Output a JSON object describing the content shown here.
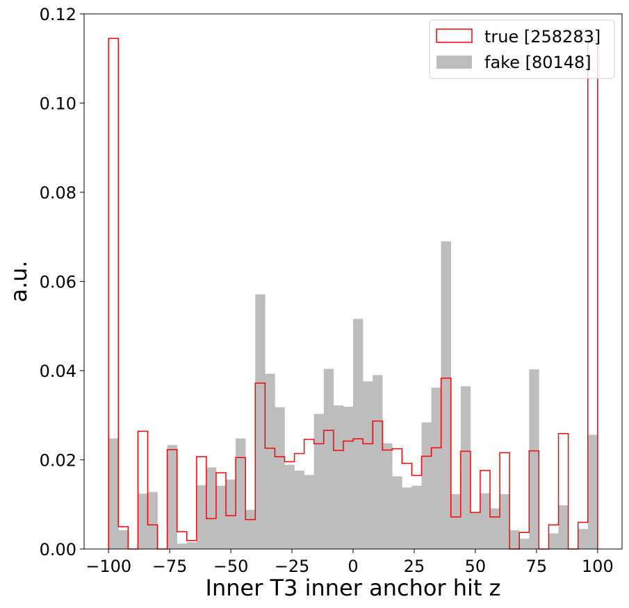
{
  "chart_data": {
    "type": "bar",
    "xlabel": "Inner T3 inner anchor hit z",
    "ylabel": "a.u.",
    "xlim": [
      -110,
      110
    ],
    "ylim": [
      0,
      0.12
    ],
    "xticks": [
      -100,
      -75,
      -50,
      -25,
      0,
      25,
      50,
      75,
      100
    ],
    "xtick_labels": [
      "−100",
      "−75",
      "−50",
      "−25",
      "0",
      "25",
      "50",
      "75",
      "100"
    ],
    "yticks": [
      0.0,
      0.02,
      0.04,
      0.06,
      0.08,
      0.1,
      0.12
    ],
    "ytick_labels": [
      "0.00",
      "0.02",
      "0.04",
      "0.06",
      "0.08",
      "0.10",
      "0.12"
    ],
    "bin_edges": [
      -100,
      -96,
      -92,
      -88,
      -84,
      -80,
      -76,
      -72,
      -68,
      -64,
      -60,
      -56,
      -52,
      -48,
      -44,
      -40,
      -36,
      -32,
      -28,
      -24,
      -20,
      -16,
      -12,
      -8,
      -4,
      0,
      4,
      8,
      12,
      16,
      20,
      24,
      28,
      32,
      36,
      40,
      44,
      48,
      52,
      56,
      60,
      64,
      68,
      72,
      76,
      80,
      84,
      88,
      92,
      96,
      100
    ],
    "legend_position": "top-right",
    "series": [
      {
        "name": "true [258283]",
        "style": "step",
        "color": "#ff0000",
        "values": [
          0.1145,
          0.005,
          0.0,
          0.0264,
          0.0054,
          0.0,
          0.0223,
          0.0039,
          0.0019,
          0.0207,
          0.0068,
          0.0171,
          0.0075,
          0.0205,
          0.0066,
          0.0372,
          0.0226,
          0.0207,
          0.0196,
          0.0214,
          0.0246,
          0.0236,
          0.0266,
          0.0221,
          0.0242,
          0.0247,
          0.0236,
          0.0287,
          0.0222,
          0.0225,
          0.0192,
          0.0165,
          0.0208,
          0.0227,
          0.0383,
          0.0072,
          0.0219,
          0.0082,
          0.0176,
          0.0072,
          0.0216,
          0.0,
          0.0037,
          0.022,
          0.0,
          0.0054,
          0.0259,
          0.0,
          0.006,
          0.114
        ]
      },
      {
        "name": "fake [80148]",
        "style": "filled",
        "color": "#bdbdbd",
        "values": [
          0.0248,
          0.0042,
          0.0,
          0.0124,
          0.0128,
          0.0,
          0.0233,
          0.0012,
          0.0015,
          0.0143,
          0.0183,
          0.0142,
          0.0156,
          0.0248,
          0.0088,
          0.0571,
          0.0393,
          0.0318,
          0.0189,
          0.0176,
          0.0166,
          0.0303,
          0.0404,
          0.0322,
          0.0319,
          0.0516,
          0.0376,
          0.039,
          0.0237,
          0.0163,
          0.0138,
          0.0142,
          0.0284,
          0.0362,
          0.069,
          0.0123,
          0.0365,
          0.0083,
          0.0125,
          0.0091,
          0.0123,
          0.0042,
          0.0023,
          0.0403,
          0.0,
          0.0035,
          0.0098,
          0.0,
          0.0045,
          0.0256
        ]
      }
    ]
  }
}
